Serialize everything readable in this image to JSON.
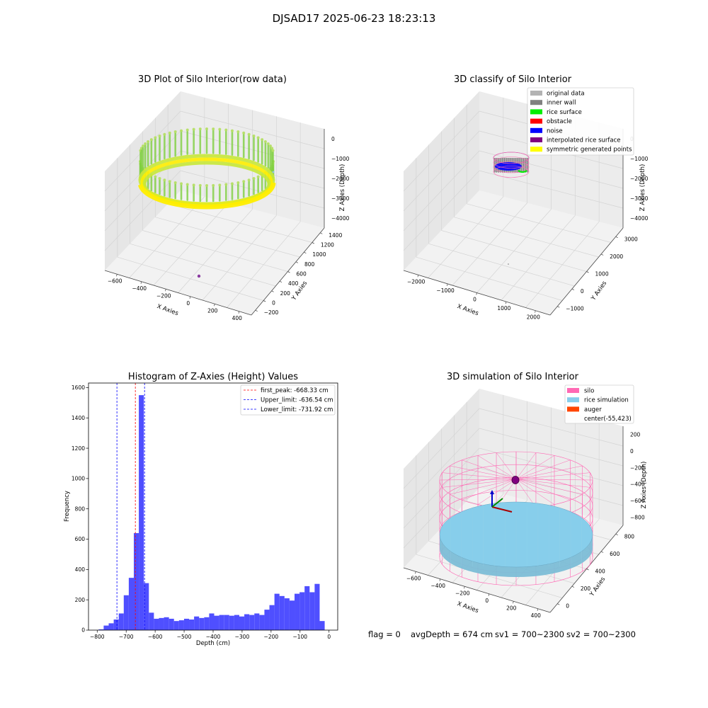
{
  "suptitle": "DJSAD17 2025-06-23 18:23:13",
  "footer": {
    "flag": "flag = 0",
    "avg": "avgDepth = 674 cm",
    "sv1": "sv1 = 700~2300",
    "sv2": "sv2 = 700~2300"
  },
  "chart_data": [
    {
      "type": "scatter",
      "projection": "3d",
      "title": "3D Plot of Silo Interior(row data)",
      "xlabel": "X Axies",
      "ylabel": "Y Axies",
      "zlabel": "Z Axies (Depth)",
      "x_ticks": [
        "−600",
        "−400",
        "−200",
        "0",
        "200",
        "400"
      ],
      "y_ticks": [
        "−200",
        "0",
        "200",
        "400",
        "600",
        "800",
        "1000",
        "1200",
        "1400"
      ],
      "z_ticks": [
        "0",
        "−1000",
        "−2000",
        "−3000",
        "−4000"
      ],
      "colormap": [
        "#80d040",
        "#ffee00"
      ],
      "outlier_color": "#8a3aa0",
      "grid": true
    },
    {
      "type": "scatter",
      "projection": "3d",
      "title": "3D classify of Silo Interior",
      "xlabel": "X Axies",
      "ylabel": "Y Axies",
      "zlabel": "Z Axies (Depth)",
      "x_ticks": [
        "−2000",
        "−1000",
        "0",
        "1000",
        "2000"
      ],
      "y_ticks": [
        "−1000",
        "0",
        "1000",
        "2000",
        "3000"
      ],
      "z_ticks": [
        "0",
        "−1000",
        "−2000",
        "−3000",
        "−4000"
      ],
      "legend_position": "top-right",
      "legend": [
        {
          "label": "original data",
          "color": "#b3b3b3"
        },
        {
          "label": "inner wall",
          "color": "#808080"
        },
        {
          "label": "rice surface",
          "color": "#00ee00"
        },
        {
          "label": "obstacle",
          "color": "#ff0000"
        },
        {
          "label": "noise",
          "color": "#0000ff"
        },
        {
          "label": "interpolated rice surface",
          "color": "#800080"
        },
        {
          "label": "symmetric generated points",
          "color": "#ffff00"
        }
      ],
      "grid": true
    },
    {
      "type": "bar",
      "subtype": "histogram",
      "title": "Histogram of Z-Axies (Height) Values",
      "xlabel": "Depth (cm)",
      "ylabel": "Frequency",
      "xlim": [
        -830,
        30
      ],
      "ylim": [
        0,
        1630
      ],
      "bar_color": "#4f4fff",
      "x_ticks": [
        -800,
        -700,
        -600,
        -500,
        -400,
        -300,
        -200,
        -100,
        0
      ],
      "y_ticks": [
        0,
        200,
        400,
        600,
        800,
        1000,
        1200,
        1400,
        1600
      ],
      "bin_width": 9.5,
      "bins": [
        [
          -800,
          5
        ],
        [
          -790,
          30
        ],
        [
          -780,
          45
        ],
        [
          -770,
          70
        ],
        [
          -760,
          110
        ],
        [
          -750,
          230
        ],
        [
          -740,
          345
        ],
        [
          -730,
          640
        ],
        [
          -720,
          1550
        ],
        [
          -710,
          310
        ],
        [
          -700,
          115
        ],
        [
          -690,
          75
        ],
        [
          -680,
          80
        ],
        [
          -670,
          85
        ],
        [
          -660,
          75
        ],
        [
          -650,
          60
        ],
        [
          -640,
          65
        ],
        [
          -630,
          75
        ],
        [
          -620,
          70
        ],
        [
          -610,
          90
        ],
        [
          -600,
          80
        ],
        [
          -590,
          85
        ],
        [
          -580,
          110
        ],
        [
          -570,
          95
        ],
        [
          -560,
          100
        ],
        [
          -550,
          100
        ],
        [
          -540,
          95
        ],
        [
          -530,
          100
        ],
        [
          -520,
          90
        ],
        [
          -510,
          105
        ],
        [
          -500,
          100
        ],
        [
          -490,
          110
        ],
        [
          -480,
          100
        ],
        [
          -470,
          135
        ],
        [
          -460,
          165
        ],
        [
          -450,
          240
        ],
        [
          -440,
          225
        ],
        [
          -430,
          210
        ],
        [
          -420,
          195
        ],
        [
          -410,
          240
        ],
        [
          -400,
          250
        ],
        [
          -390,
          290
        ],
        [
          -380,
          250
        ],
        [
          -370,
          305
        ],
        [
          -360,
          60
        ]
      ],
      "vlines": [
        {
          "x": -668.33,
          "color": "#ff0000",
          "label": "first_peak: -668.33 cm"
        },
        {
          "x": -636.54,
          "color": "#0000ff",
          "label": "Upper_limit: -636.54 cm"
        },
        {
          "x": -731.92,
          "color": "#0000ff",
          "label": "Lower_limit: -731.92 cm"
        }
      ],
      "legend_position": "top-right"
    },
    {
      "type": "scatter",
      "projection": "3d",
      "title": "3D simulation of Silo Interior",
      "xlabel": "X Axies",
      "ylabel": "Y Axies",
      "zlabel": "Z Axies (Depth)",
      "x_ticks": [
        "−600",
        "−400",
        "−200",
        "0",
        "200",
        "400"
      ],
      "y_ticks": [
        "0",
        "200",
        "400",
        "600",
        "800"
      ],
      "z_ticks": [
        "200",
        "0",
        "−200",
        "−400",
        "−600",
        "−800"
      ],
      "legend_position": "top-right",
      "legend": [
        {
          "label": "silo",
          "color": "#ff69b4"
        },
        {
          "label": "rice simulation",
          "color": "#87ceeb"
        },
        {
          "label": "auger",
          "color": "#ff4500"
        },
        {
          "label": "center(-55,423)",
          "color": ""
        }
      ],
      "grid": true
    }
  ]
}
